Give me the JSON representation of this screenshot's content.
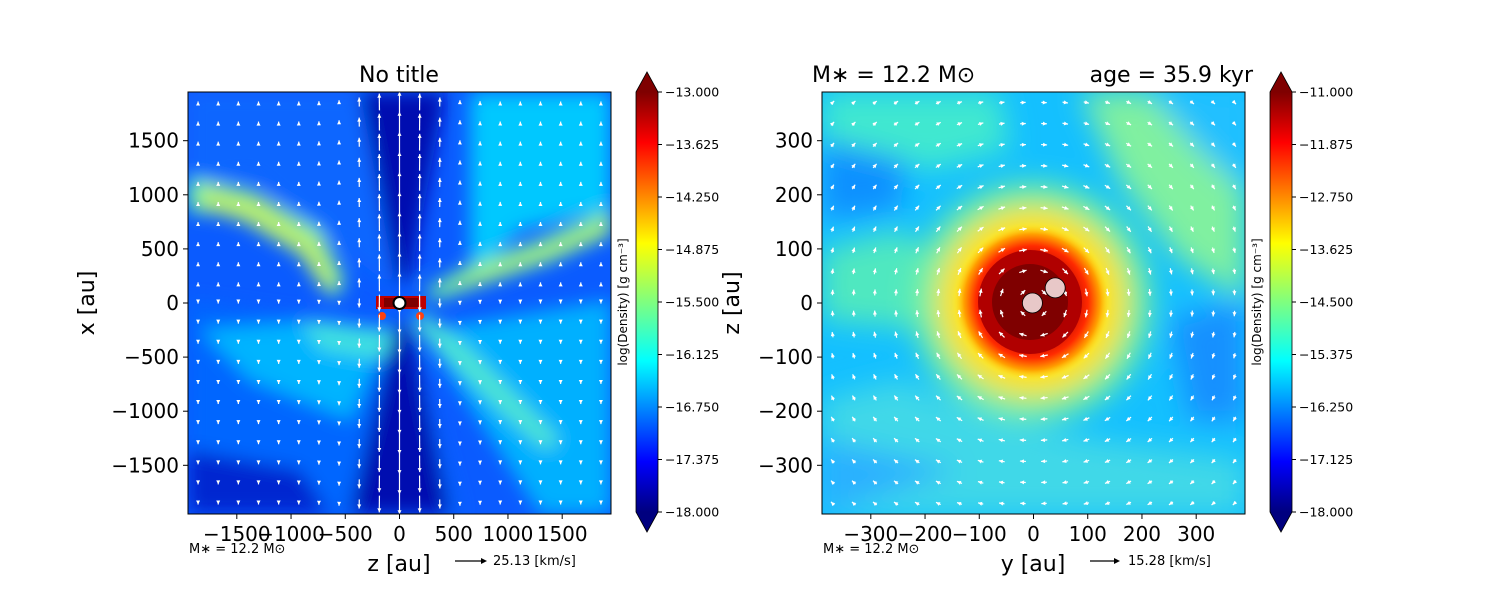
{
  "chart_data": [
    {
      "type": "heatmap",
      "title": "No title",
      "xlabel": "z [au]",
      "ylabel": "x [au]",
      "xlim": [
        -1950,
        1950
      ],
      "ylim": [
        -1950,
        1950
      ],
      "xticks": [
        -1500,
        -1000,
        -500,
        0,
        500,
        1000,
        1500
      ],
      "yticks": [
        -1500,
        -1000,
        -500,
        0,
        500,
        1000,
        1500
      ],
      "xtick_labels": [
        "−1500",
        "−1000",
        "−500",
        "0",
        "500",
        "1000",
        "1500"
      ],
      "ytick_labels": [
        "−1500",
        "−1000",
        "−500",
        "0",
        "500",
        "1000",
        "1500"
      ],
      "colorbar": {
        "label": "log(Density) [g cm⁻³]",
        "range": [
          -18.0,
          -13.0
        ],
        "ticks": [
          "−13.000",
          "−13.625",
          "−14.250",
          "−14.875",
          "−15.500",
          "−16.125",
          "−16.750",
          "−17.375",
          "−18.000"
        ]
      },
      "annotation": "M∗ = 12.2 M⊙",
      "velocity_key": "25.13 [km/s]",
      "stars": [
        {
          "x": 0,
          "y": 0
        }
      ]
    },
    {
      "type": "heatmap",
      "title_left": "M∗ = 12.2 M⊙",
      "title_right": "age = 35.9 kyr",
      "xlabel": "y [au]",
      "ylabel": "z [au]",
      "xlim": [
        -390,
        390
      ],
      "ylim": [
        -390,
        390
      ],
      "xticks": [
        -300,
        -200,
        -100,
        0,
        100,
        200,
        300
      ],
      "yticks": [
        -300,
        -200,
        -100,
        0,
        100,
        200,
        300
      ],
      "xtick_labels": [
        "−300",
        "−200",
        "−100",
        "0",
        "100",
        "200",
        "300"
      ],
      "ytick_labels": [
        "−300",
        "−200",
        "−100",
        "0",
        "100",
        "200",
        "300"
      ],
      "colorbar": {
        "label": "log(Density) [g cm⁻³]",
        "range": [
          -18.0,
          -11.0
        ],
        "ticks": [
          "−11.000",
          "−11.875",
          "−12.750",
          "−13.625",
          "−14.500",
          "−15.375",
          "−16.250",
          "−17.125",
          "−18.000"
        ]
      },
      "annotation": "M∗ = 12.2 M⊙",
      "velocity_key": "15.28 [km/s]",
      "stars": [
        {
          "x": -2,
          "y": 0
        },
        {
          "x": 40,
          "y": 28
        }
      ]
    }
  ]
}
